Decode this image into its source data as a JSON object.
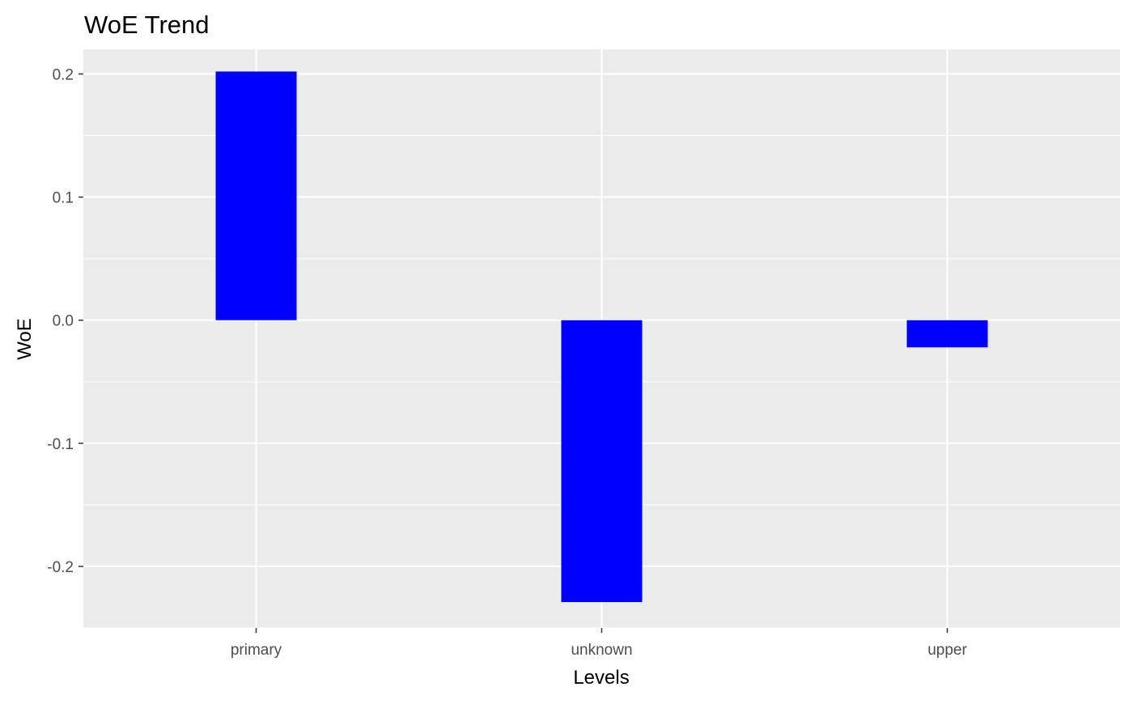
{
  "chart_data": {
    "type": "bar",
    "title": "WoE Trend",
    "xlabel": "Levels",
    "ylabel": "WoE",
    "categories": [
      "primary",
      "unknown",
      "upper"
    ],
    "values": [
      0.202,
      -0.229,
      -0.022
    ],
    "ylim": [
      -0.25,
      0.22
    ],
    "yticks": [
      0.2,
      0.1,
      0.0,
      -0.1,
      -0.2
    ],
    "ytick_labels": [
      "0.2",
      "0.1",
      "0.0",
      "-0.1",
      "-0.2"
    ],
    "grid": true,
    "legend": "none",
    "colors": {
      "bar": "#0000ff",
      "panel_background": "#ebebeb",
      "grid": "#ffffff",
      "tick_text": "#4d4d4d",
      "tick_mark": "#333333"
    }
  }
}
